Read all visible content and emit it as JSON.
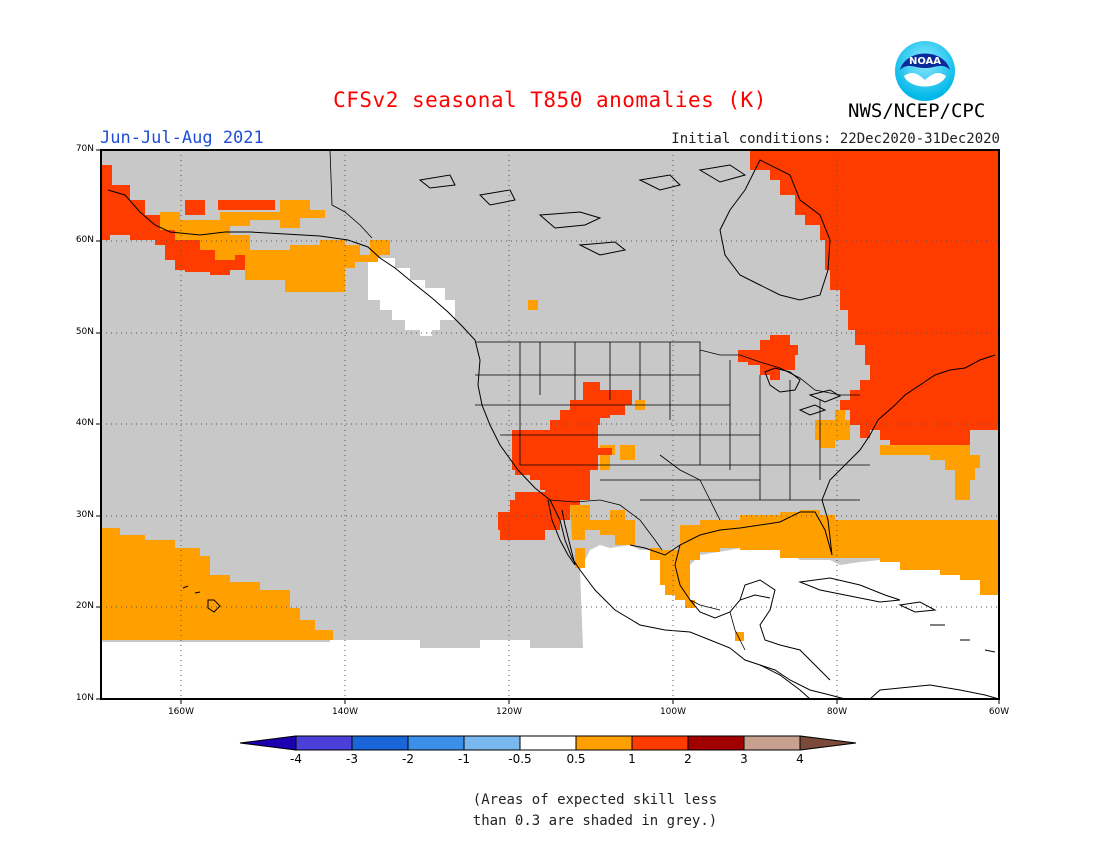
{
  "title": "CFSv2 seasonal T850 anomalies (K)",
  "period": "Jun-Jul-Aug 2021",
  "initial_conditions": "Initial conditions: 22Dec2020-31Dec2020",
  "agency": "NWS/NCEP/CPC",
  "logo_text": "NOAA",
  "lat_labels": [
    "70N",
    "60N",
    "50N",
    "40N",
    "30N",
    "20N",
    "10N"
  ],
  "lon_labels": [
    "160W",
    "140W",
    "120W",
    "100W",
    "80W",
    "60W"
  ],
  "colorbar": {
    "labels": [
      "-4",
      "-3",
      "-2",
      "-1",
      "-0.5",
      "0.5",
      "1",
      "2",
      "3",
      "4"
    ],
    "colors": [
      "#1a00b0",
      "#4a3fd8",
      "#1a66d8",
      "#3c8fe8",
      "#7ab8f0",
      "#ffffff",
      "#ffa000",
      "#ff3c00",
      "#a00000",
      "#c8a090",
      "#7a4a3a"
    ]
  },
  "note_line1": "(Areas of expected skill less",
  "note_line2": "than 0.3 are shaded in grey.)",
  "colors": {
    "grey_low_skill": "#c8c8c8",
    "anomaly_0_5_to_1": "#ffa000",
    "anomaly_1_to_2": "#ff3c00",
    "title_red": "#ff0000",
    "period_blue": "#1f4fd8"
  }
}
